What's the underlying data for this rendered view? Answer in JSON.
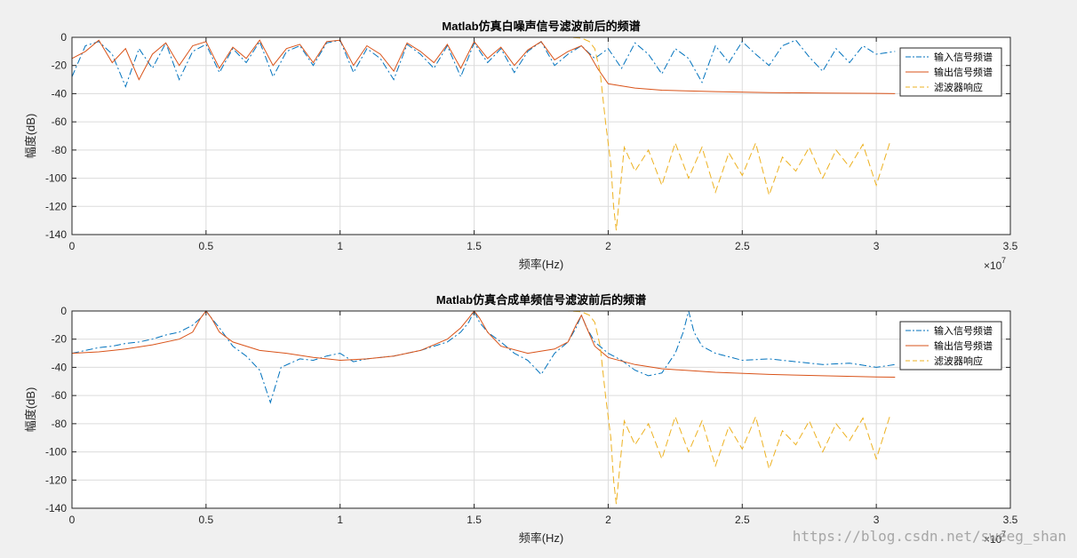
{
  "watermark": "https://blog.csdn.net/sweeg_shan",
  "colors": {
    "figure_bg": "#f0f0f0",
    "axes_bg": "#ffffff",
    "grid": "#dcdcdc",
    "axis": "#262626",
    "input": "#0072bd",
    "output": "#d95319",
    "filter": "#edb120"
  },
  "chart_data": [
    {
      "type": "line",
      "title": "Matlab仿真白噪声信号滤波前后的频谱",
      "xlabel": "频率(Hz)",
      "ylabel": "幅度(dB)",
      "x_exponent_label": "×10",
      "x_exponent_sup": "7",
      "xlim": [
        0,
        3.5
      ],
      "ylim": [
        -140,
        0
      ],
      "xticks": [
        0,
        0.5,
        1,
        1.5,
        2,
        2.5,
        3,
        3.5
      ],
      "xtick_labels": [
        "0",
        "0.5",
        "1",
        "1.5",
        "2",
        "2.5",
        "3",
        "3.5"
      ],
      "yticks": [
        0,
        -20,
        -40,
        -60,
        -80,
        -100,
        -120,
        -140
      ],
      "ytick_labels": [
        "0",
        "-20",
        "-40",
        "-60",
        "-80",
        "-100",
        "-120",
        "-140"
      ],
      "grid": true,
      "legend_position": "top-right",
      "series": [
        {
          "name": "输入信号频谱",
          "style": "dashdot",
          "color": "#0072bd",
          "x": [
            0,
            0.05,
            0.1,
            0.15,
            0.2,
            0.25,
            0.3,
            0.35,
            0.4,
            0.45,
            0.5,
            0.55,
            0.6,
            0.65,
            0.7,
            0.75,
            0.8,
            0.85,
            0.9,
            0.95,
            1.0,
            1.05,
            1.1,
            1.15,
            1.2,
            1.25,
            1.3,
            1.35,
            1.4,
            1.45,
            1.5,
            1.55,
            1.6,
            1.65,
            1.7,
            1.75,
            1.8,
            1.85,
            1.9,
            1.95,
            2.0,
            2.05,
            2.1,
            2.15,
            2.2,
            2.25,
            2.3,
            2.35,
            2.4,
            2.45,
            2.5,
            2.55,
            2.6,
            2.65,
            2.7,
            2.75,
            2.8,
            2.85,
            2.9,
            2.95,
            3.0,
            3.07
          ],
          "y": [
            -28,
            -6,
            -3,
            -12,
            -35,
            -8,
            -22,
            -4,
            -30,
            -10,
            -5,
            -25,
            -8,
            -18,
            -3,
            -28,
            -10,
            -6,
            -20,
            -4,
            -2,
            -25,
            -8,
            -15,
            -30,
            -5,
            -12,
            -22,
            -6,
            -28,
            -4,
            -18,
            -8,
            -25,
            -10,
            -3,
            -20,
            -12,
            -6,
            -15,
            -8,
            -22,
            -4,
            -12,
            -26,
            -8,
            -15,
            -32,
            -6,
            -18,
            -3,
            -12,
            -20,
            -6,
            -2,
            -14,
            -24,
            -8,
            -18,
            -6,
            -12,
            -10
          ]
        },
        {
          "name": "输出信号频谱",
          "style": "solid",
          "color": "#d95319",
          "x": [
            0,
            0.05,
            0.1,
            0.15,
            0.2,
            0.25,
            0.3,
            0.35,
            0.4,
            0.45,
            0.5,
            0.55,
            0.6,
            0.65,
            0.7,
            0.75,
            0.8,
            0.85,
            0.9,
            0.95,
            1.0,
            1.05,
            1.1,
            1.15,
            1.2,
            1.25,
            1.3,
            1.35,
            1.4,
            1.45,
            1.5,
            1.55,
            1.6,
            1.65,
            1.7,
            1.75,
            1.8,
            1.85,
            1.9,
            1.93,
            1.96,
            2.0,
            2.1,
            2.2,
            2.4,
            2.6,
            2.8,
            3.0,
            3.07
          ],
          "y": [
            -15,
            -10,
            -2,
            -18,
            -8,
            -30,
            -12,
            -4,
            -20,
            -6,
            -3,
            -22,
            -7,
            -15,
            -2,
            -20,
            -8,
            -5,
            -18,
            -3,
            -2,
            -20,
            -6,
            -12,
            -24,
            -4,
            -10,
            -18,
            -5,
            -22,
            -3,
            -15,
            -7,
            -20,
            -9,
            -3,
            -16,
            -10,
            -6,
            -12,
            -22,
            -33,
            -36,
            -37.5,
            -38.5,
            -39.2,
            -39.6,
            -39.8,
            -40
          ]
        },
        {
          "name": "滤波器响应",
          "style": "dashed",
          "color": "#edb120",
          "x": [
            0,
            0.5,
            1.0,
            1.5,
            1.85,
            1.9,
            1.93,
            1.95,
            1.97,
            1.99,
            2.01,
            2.02,
            2.03,
            2.06,
            2.1,
            2.15,
            2.2,
            2.25,
            2.3,
            2.35,
            2.4,
            2.45,
            2.5,
            2.55,
            2.6,
            2.65,
            2.7,
            2.75,
            2.8,
            2.85,
            2.9,
            2.95,
            3.0,
            3.05
          ],
          "y": [
            0,
            0,
            0,
            0,
            0,
            -0.5,
            -3,
            -8,
            -25,
            -60,
            -90,
            -120,
            -137,
            -78,
            -95,
            -80,
            -105,
            -75,
            -100,
            -78,
            -110,
            -82,
            -98,
            -75,
            -112,
            -85,
            -95,
            -78,
            -100,
            -80,
            -92,
            -76,
            -105,
            -75
          ]
        }
      ]
    },
    {
      "type": "line",
      "title": "Matlab仿真合成单频信号滤波前后的频谱",
      "xlabel": "频率(Hz)",
      "ylabel": "幅度(dB)",
      "x_exponent_label": "×10",
      "x_exponent_sup": "7",
      "xlim": [
        0,
        3.5
      ],
      "ylim": [
        -140,
        0
      ],
      "xticks": [
        0,
        0.5,
        1,
        1.5,
        2,
        2.5,
        3,
        3.5
      ],
      "xtick_labels": [
        "0",
        "0.5",
        "1",
        "1.5",
        "2",
        "2.5",
        "3",
        "3.5"
      ],
      "yticks": [
        0,
        -20,
        -40,
        -60,
        -80,
        -100,
        -120,
        -140
      ],
      "ytick_labels": [
        "0",
        "-20",
        "-40",
        "-60",
        "-80",
        "-100",
        "-120",
        "-140"
      ],
      "grid": true,
      "legend_position": "top-right",
      "series": [
        {
          "name": "输入信号频谱",
          "style": "dashdot",
          "color": "#0072bd",
          "x": [
            0,
            0.05,
            0.1,
            0.15,
            0.2,
            0.25,
            0.3,
            0.35,
            0.4,
            0.45,
            0.48,
            0.5,
            0.52,
            0.55,
            0.6,
            0.65,
            0.7,
            0.74,
            0.78,
            0.85,
            0.9,
            0.95,
            1.0,
            1.05,
            1.1,
            1.2,
            1.3,
            1.4,
            1.45,
            1.48,
            1.5,
            1.52,
            1.55,
            1.6,
            1.65,
            1.7,
            1.75,
            1.8,
            1.85,
            1.88,
            1.9,
            1.92,
            1.95,
            2.0,
            2.05,
            2.1,
            2.15,
            2.2,
            2.25,
            2.28,
            2.3,
            2.32,
            2.35,
            2.4,
            2.5,
            2.6,
            2.7,
            2.8,
            2.9,
            3.0,
            3.07
          ],
          "y": [
            -30,
            -28,
            -26,
            -25,
            -23,
            -22,
            -20,
            -17,
            -15,
            -10,
            -5,
            0,
            -5,
            -12,
            -25,
            -32,
            -42,
            -65,
            -40,
            -34,
            -35,
            -32,
            -30,
            -36,
            -34,
            -32,
            -28,
            -22,
            -15,
            -8,
            0,
            -8,
            -15,
            -22,
            -30,
            -35,
            -45,
            -30,
            -22,
            -12,
            -3,
            -12,
            -22,
            -30,
            -35,
            -42,
            -46,
            -44,
            -30,
            -15,
            0,
            -15,
            -25,
            -30,
            -35,
            -34,
            -36,
            -38,
            -37,
            -40,
            -38
          ]
        },
        {
          "name": "输出信号频谱",
          "style": "solid",
          "color": "#d95319",
          "x": [
            0,
            0.1,
            0.2,
            0.3,
            0.4,
            0.45,
            0.48,
            0.5,
            0.52,
            0.55,
            0.6,
            0.7,
            0.8,
            0.9,
            1.0,
            1.1,
            1.2,
            1.3,
            1.4,
            1.45,
            1.48,
            1.5,
            1.52,
            1.55,
            1.6,
            1.7,
            1.8,
            1.85,
            1.88,
            1.9,
            1.92,
            1.95,
            2.0,
            2.1,
            2.2,
            2.4,
            2.6,
            2.8,
            3.0,
            3.07
          ],
          "y": [
            -30,
            -29,
            -27,
            -24,
            -20,
            -15,
            -5,
            0,
            -5,
            -15,
            -22,
            -28,
            -30,
            -33,
            -35,
            -34,
            -32,
            -28,
            -20,
            -12,
            -5,
            0,
            -5,
            -15,
            -25,
            -30,
            -27,
            -22,
            -10,
            -3,
            -12,
            -25,
            -33,
            -38,
            -41,
            -43.5,
            -45,
            -46,
            -46.8,
            -47
          ]
        },
        {
          "name": "滤波器响应",
          "style": "dashed",
          "color": "#edb120",
          "x": [
            0,
            0.5,
            1.0,
            1.5,
            1.85,
            1.9,
            1.93,
            1.95,
            1.97,
            1.99,
            2.01,
            2.02,
            2.03,
            2.06,
            2.1,
            2.15,
            2.2,
            2.25,
            2.3,
            2.35,
            2.4,
            2.45,
            2.5,
            2.55,
            2.6,
            2.65,
            2.7,
            2.75,
            2.8,
            2.85,
            2.9,
            2.95,
            3.0,
            3.05
          ],
          "y": [
            0,
            0,
            0,
            0,
            0,
            -0.5,
            -3,
            -8,
            -25,
            -60,
            -90,
            -120,
            -137,
            -78,
            -95,
            -80,
            -105,
            -75,
            -100,
            -78,
            -110,
            -82,
            -98,
            -75,
            -112,
            -85,
            -95,
            -78,
            -100,
            -80,
            -92,
            -76,
            -105,
            -75
          ]
        }
      ]
    }
  ]
}
